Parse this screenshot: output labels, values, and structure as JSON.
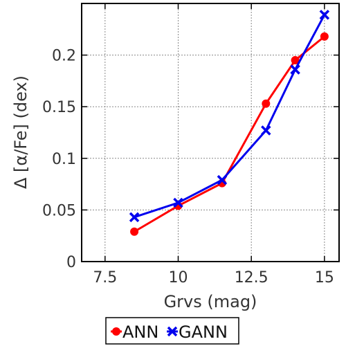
{
  "chart_data": {
    "type": "line",
    "title": "",
    "xlabel": "Grvs (mag)",
    "ylabel": "Δ [α/Fe] (dex)",
    "xlim": [
      6.7,
      15.5
    ],
    "ylim": [
      0,
      0.25
    ],
    "xticks": [
      7.5,
      10,
      12.5,
      15
    ],
    "xtick_labels": [
      "7.5",
      "10",
      "12.5",
      "15"
    ],
    "yticks": [
      0,
      0.05,
      0.1,
      0.15,
      0.2
    ],
    "ytick_labels": [
      "0",
      "0.05",
      "0.1",
      "0.15",
      "0.2"
    ],
    "grid": true,
    "legend_position": "bottom-outside",
    "series": [
      {
        "name": "ANN",
        "color": "#ff0000",
        "marker": "circle",
        "x": [
          8.5,
          10,
          11.5,
          13,
          14,
          15
        ],
        "y": [
          0.029,
          0.054,
          0.076,
          0.153,
          0.195,
          0.218
        ]
      },
      {
        "name": "GANN",
        "color": "#0000ee",
        "marker": "x",
        "x": [
          8.5,
          10,
          11.5,
          13,
          14,
          15
        ],
        "y": [
          0.043,
          0.057,
          0.079,
          0.127,
          0.186,
          0.239
        ]
      }
    ]
  }
}
